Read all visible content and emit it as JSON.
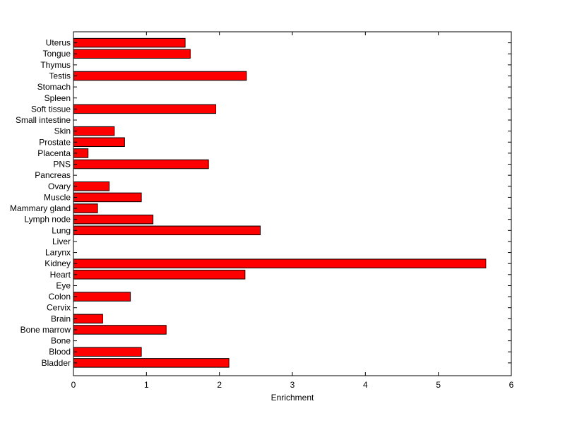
{
  "chart_data": {
    "type": "bar",
    "orientation": "horizontal",
    "xlabel": "Enrichment",
    "ylabel": "",
    "title": "",
    "xlim": [
      0,
      6
    ],
    "xticks": [
      0,
      1,
      2,
      3,
      4,
      5,
      6
    ],
    "grid": false,
    "bar_color": "#ff0000",
    "categories": [
      "Uterus",
      "Tongue",
      "Thymus",
      "Testis",
      "Stomach",
      "Spleen",
      "Soft tissue",
      "Small intestine",
      "Skin",
      "Prostate",
      "Placenta",
      "PNS",
      "Pancreas",
      "Ovary",
      "Muscle",
      "Mammary gland",
      "Lymph node",
      "Lung",
      "Liver",
      "Larynx",
      "Kidney",
      "Heart",
      "Eye",
      "Colon",
      "Cervix",
      "Brain",
      "Bone marrow",
      "Bone",
      "Blood",
      "Bladder"
    ],
    "values": [
      1.53,
      1.6,
      0,
      2.37,
      0,
      0,
      1.95,
      0,
      0.56,
      0.7,
      0.2,
      1.85,
      0,
      0.49,
      0.93,
      0.33,
      1.09,
      2.56,
      0,
      0,
      5.65,
      2.35,
      0,
      0.78,
      0,
      0.4,
      1.27,
      0,
      0.93,
      2.13
    ]
  }
}
